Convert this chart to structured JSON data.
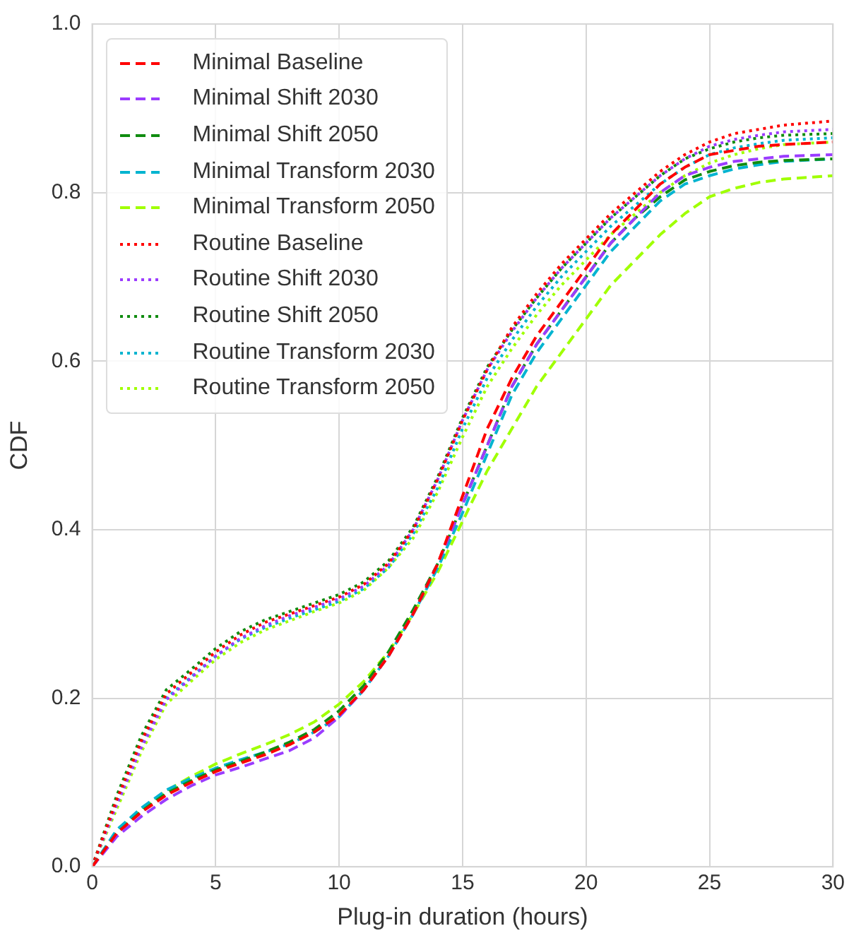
{
  "chart_data": {
    "type": "line",
    "xlabel": "Plug-in duration (hours)",
    "ylabel": "CDF",
    "x": [
      0,
      1,
      2,
      3,
      4,
      5,
      6,
      7,
      8,
      9,
      10,
      11,
      12,
      13,
      14,
      15,
      16,
      17,
      18,
      19,
      20,
      21,
      22,
      23,
      24,
      25,
      26,
      27,
      28,
      30
    ],
    "xlim": [
      0,
      30
    ],
    "xticks": [
      0,
      5,
      10,
      15,
      20,
      25,
      30
    ],
    "ylim": [
      0,
      1
    ],
    "yticks": [
      {
        "value": 0,
        "label": "0.0"
      },
      0.2,
      0.4,
      0.6,
      0.8,
      {
        "value": 1,
        "label": "1.0"
      }
    ],
    "grid": true,
    "legend": "top left",
    "marker": "none",
    "series": [
      {
        "name": "Minimal Baseline",
        "color": "#ff0000",
        "line_style": "dashed",
        "values": [
          0,
          0.04,
          0.065,
          0.085,
          0.1,
          0.113,
          0.123,
          0.133,
          0.145,
          0.16,
          0.18,
          0.21,
          0.25,
          0.3,
          0.36,
          0.44,
          0.52,
          0.58,
          0.63,
          0.67,
          0.71,
          0.75,
          0.78,
          0.81,
          0.83,
          0.845,
          0.85,
          0.855,
          0.857,
          0.86
        ]
      },
      {
        "name": "Minimal Shift 2030",
        "color": "#9b3cff",
        "line_style": "dashed",
        "values": [
          0,
          0.036,
          0.06,
          0.08,
          0.096,
          0.109,
          0.118,
          0.128,
          0.138,
          0.153,
          0.178,
          0.21,
          0.25,
          0.3,
          0.36,
          0.43,
          0.5,
          0.57,
          0.62,
          0.66,
          0.7,
          0.74,
          0.77,
          0.8,
          0.82,
          0.83,
          0.837,
          0.84,
          0.843,
          0.845
        ]
      },
      {
        "name": "Minimal Shift 2050",
        "color": "#108c10",
        "line_style": "dashed",
        "values": [
          0,
          0.04,
          0.066,
          0.087,
          0.102,
          0.115,
          0.125,
          0.136,
          0.148,
          0.163,
          0.185,
          0.215,
          0.255,
          0.305,
          0.36,
          0.43,
          0.5,
          0.57,
          0.62,
          0.66,
          0.7,
          0.74,
          0.77,
          0.795,
          0.815,
          0.825,
          0.832,
          0.836,
          0.838,
          0.84
        ]
      },
      {
        "name": "Minimal Transform 2030",
        "color": "#00b4d0",
        "line_style": "dashed",
        "values": [
          0,
          0.044,
          0.07,
          0.091,
          0.105,
          0.117,
          0.127,
          0.136,
          0.146,
          0.16,
          0.178,
          0.21,
          0.25,
          0.3,
          0.355,
          0.42,
          0.49,
          0.56,
          0.61,
          0.65,
          0.69,
          0.73,
          0.76,
          0.79,
          0.81,
          0.82,
          0.828,
          0.833,
          0.837,
          0.84
        ]
      },
      {
        "name": "Minimal Transform 2050",
        "color": "#a0ff00",
        "line_style": "dashed",
        "values": [
          0,
          0.042,
          0.068,
          0.09,
          0.107,
          0.122,
          0.134,
          0.145,
          0.157,
          0.172,
          0.193,
          0.22,
          0.255,
          0.3,
          0.35,
          0.41,
          0.47,
          0.52,
          0.57,
          0.61,
          0.65,
          0.69,
          0.72,
          0.75,
          0.775,
          0.795,
          0.805,
          0.812,
          0.816,
          0.82
        ]
      },
      {
        "name": "Routine Baseline",
        "color": "#ff0000",
        "line_style": "dotted",
        "values": [
          0,
          0.08,
          0.15,
          0.205,
          0.23,
          0.255,
          0.275,
          0.29,
          0.3,
          0.31,
          0.32,
          0.335,
          0.36,
          0.4,
          0.46,
          0.53,
          0.59,
          0.64,
          0.68,
          0.715,
          0.745,
          0.775,
          0.8,
          0.825,
          0.845,
          0.86,
          0.87,
          0.875,
          0.88,
          0.885
        ]
      },
      {
        "name": "Routine Shift 2030",
        "color": "#9b3cff",
        "line_style": "dotted",
        "values": [
          0,
          0.074,
          0.142,
          0.198,
          0.224,
          0.25,
          0.271,
          0.286,
          0.298,
          0.308,
          0.318,
          0.333,
          0.358,
          0.4,
          0.46,
          0.53,
          0.59,
          0.635,
          0.675,
          0.71,
          0.74,
          0.77,
          0.795,
          0.82,
          0.84,
          0.855,
          0.863,
          0.868,
          0.872,
          0.875
        ]
      },
      {
        "name": "Routine Shift 2050",
        "color": "#108c10",
        "line_style": "dotted",
        "values": [
          0,
          0.085,
          0.156,
          0.21,
          0.234,
          0.259,
          0.279,
          0.293,
          0.303,
          0.313,
          0.323,
          0.338,
          0.363,
          0.403,
          0.463,
          0.533,
          0.593,
          0.637,
          0.675,
          0.71,
          0.74,
          0.77,
          0.795,
          0.82,
          0.84,
          0.852,
          0.86,
          0.865,
          0.868,
          0.87
        ]
      },
      {
        "name": "Routine Transform 2030",
        "color": "#00b4d0",
        "line_style": "dotted",
        "values": [
          0,
          0.078,
          0.148,
          0.2,
          0.225,
          0.25,
          0.27,
          0.284,
          0.295,
          0.305,
          0.315,
          0.33,
          0.355,
          0.395,
          0.45,
          0.52,
          0.58,
          0.625,
          0.665,
          0.7,
          0.73,
          0.76,
          0.785,
          0.81,
          0.83,
          0.845,
          0.853,
          0.858,
          0.862,
          0.865
        ]
      },
      {
        "name": "Routine Transform 2050",
        "color": "#a0ff00",
        "line_style": "dotted",
        "values": [
          0,
          0.069,
          0.137,
          0.193,
          0.22,
          0.246,
          0.266,
          0.281,
          0.292,
          0.303,
          0.313,
          0.328,
          0.355,
          0.39,
          0.445,
          0.51,
          0.57,
          0.615,
          0.655,
          0.69,
          0.72,
          0.75,
          0.775,
          0.8,
          0.82,
          0.835,
          0.845,
          0.852,
          0.857,
          0.86
        ]
      }
    ]
  }
}
